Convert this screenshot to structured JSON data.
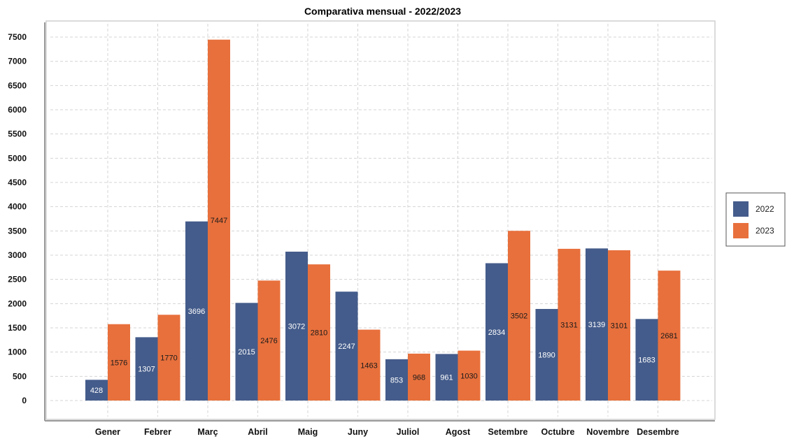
{
  "chart_data": {
    "type": "bar",
    "title": "Comparativa mensual - 2022/2023",
    "xlabel": "",
    "ylabel": "",
    "categories": [
      "Gener",
      "Febrer",
      "Març",
      "Abril",
      "Maig",
      "Juny",
      "Juliol",
      "Agost",
      "Setembre",
      "Octubre",
      "Novembre",
      "Desembre"
    ],
    "series": [
      {
        "name": "2022",
        "color": "#445c8b",
        "label_color": "#ffffff",
        "values": [
          428,
          1307,
          3696,
          2015,
          3072,
          2247,
          853,
          961,
          2834,
          1890,
          3139,
          1683
        ]
      },
      {
        "name": "2023",
        "color": "#e8703c",
        "label_color": "#1a1a1a",
        "values": [
          1576,
          1770,
          7447,
          2476,
          2810,
          1463,
          968,
          1030,
          3502,
          3131,
          3101,
          2681
        ]
      }
    ],
    "ylim": [
      -400,
      7750
    ],
    "yticks": [
      0,
      500,
      1000,
      1500,
      2000,
      2500,
      3000,
      3500,
      4000,
      4500,
      5000,
      5500,
      6000,
      6500,
      7000,
      7500
    ],
    "grid": true,
    "legend_position": "right"
  }
}
